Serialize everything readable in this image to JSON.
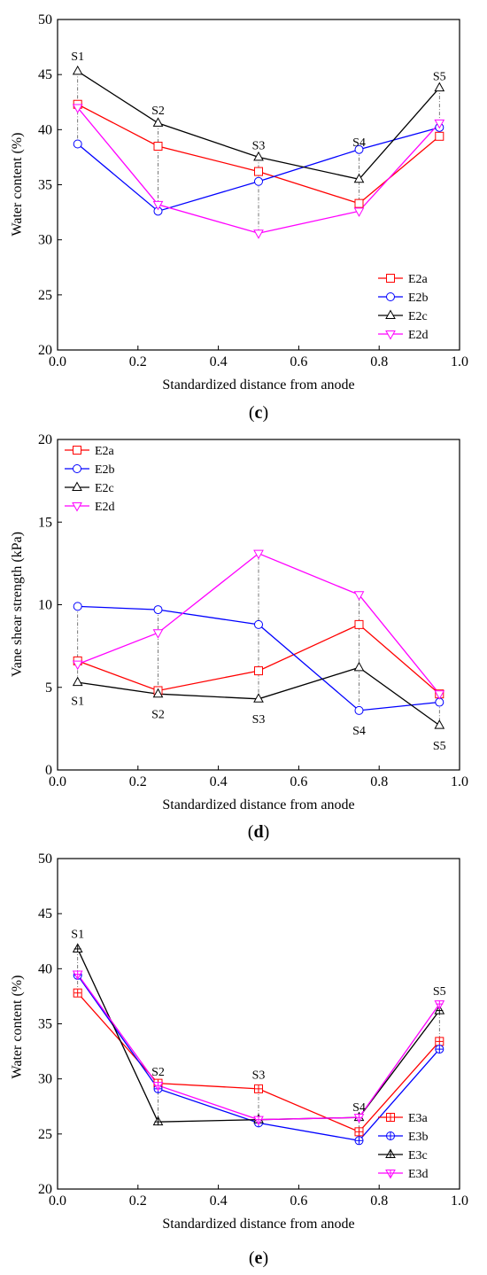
{
  "chart_data": [
    {
      "type": "line",
      "caption_open": "(",
      "caption_letter": "c",
      "caption_close": ")",
      "xlabel": "Standardized distance from anode",
      "ylabel": "Water content (%)",
      "xlim": [
        0.0,
        1.0
      ],
      "ylim": [
        20,
        50
      ],
      "xticks": [
        "0.0",
        "0.2",
        "0.4",
        "0.6",
        "0.8",
        "1.0"
      ],
      "yticks": [
        "20",
        "25",
        "30",
        "35",
        "40",
        "45",
        "50"
      ],
      "x": [
        0.05,
        0.25,
        0.5,
        0.75,
        0.95
      ],
      "legend_position": "bottom-right",
      "series": [
        {
          "name": "E2a",
          "color": "#ff0000",
          "marker": "square",
          "values": [
            42.3,
            38.5,
            36.2,
            33.3,
            39.4
          ]
        },
        {
          "name": "E2b",
          "color": "#0000ff",
          "marker": "circle",
          "values": [
            38.7,
            32.6,
            35.3,
            38.2,
            40.2
          ]
        },
        {
          "name": "E2c",
          "color": "#000000",
          "marker": "triangle-up",
          "values": [
            45.3,
            40.6,
            37.5,
            35.5,
            43.8
          ]
        },
        {
          "name": "E2d",
          "color": "#ff00ff",
          "marker": "triangle-down",
          "values": [
            42.0,
            33.2,
            30.6,
            32.6,
            40.6
          ]
        }
      ],
      "site_labels": [
        {
          "text": "S1",
          "x": 0.05,
          "y": 46.7
        },
        {
          "text": "S2",
          "x": 0.25,
          "y": 41.8
        },
        {
          "text": "S3",
          "x": 0.5,
          "y": 38.6
        },
        {
          "text": "S4",
          "x": 0.75,
          "y": 38.9
        },
        {
          "text": "S5",
          "x": 0.95,
          "y": 44.9
        }
      ]
    },
    {
      "type": "line",
      "caption_open": "(",
      "caption_letter": "d",
      "caption_close": ")",
      "xlabel": "Standardized distance from anode",
      "ylabel": "Vane shear strength (kPa)",
      "xlim": [
        0.0,
        1.0
      ],
      "ylim": [
        0,
        20
      ],
      "xticks": [
        "0.0",
        "0.2",
        "0.4",
        "0.6",
        "0.8",
        "1.0"
      ],
      "yticks": [
        "0",
        "5",
        "10",
        "15",
        "20"
      ],
      "x": [
        0.05,
        0.25,
        0.5,
        0.75,
        0.95
      ],
      "legend_position": "top-left",
      "series": [
        {
          "name": "E2a",
          "color": "#ff0000",
          "marker": "square",
          "values": [
            6.6,
            4.8,
            6.0,
            8.8,
            4.6
          ]
        },
        {
          "name": "E2b",
          "color": "#0000ff",
          "marker": "circle",
          "values": [
            9.9,
            9.7,
            8.8,
            3.6,
            4.1
          ]
        },
        {
          "name": "E2c",
          "color": "#000000",
          "marker": "triangle-up",
          "values": [
            5.3,
            4.6,
            4.3,
            6.2,
            2.7
          ]
        },
        {
          "name": "E2d",
          "color": "#ff00ff",
          "marker": "triangle-down",
          "values": [
            6.4,
            8.3,
            13.1,
            10.6,
            4.6
          ]
        }
      ],
      "site_labels": [
        {
          "text": "S1",
          "x": 0.05,
          "y": 4.2
        },
        {
          "text": "S2",
          "x": 0.25,
          "y": 3.4
        },
        {
          "text": "S3",
          "x": 0.5,
          "y": 3.1
        },
        {
          "text": "S4",
          "x": 0.75,
          "y": 2.4
        },
        {
          "text": "S5",
          "x": 0.95,
          "y": 1.5
        }
      ]
    },
    {
      "type": "line",
      "caption_open": "(",
      "caption_letter": "e",
      "caption_close": ")",
      "xlabel": "Standardized distance from anode",
      "ylabel": "Water content (%)",
      "xlim": [
        0.0,
        1.0
      ],
      "ylim": [
        20,
        50
      ],
      "xticks": [
        "0.0",
        "0.2",
        "0.4",
        "0.6",
        "0.8",
        "1.0"
      ],
      "yticks": [
        "20",
        "25",
        "30",
        "35",
        "40",
        "45",
        "50"
      ],
      "x": [
        0.05,
        0.25,
        0.5,
        0.75,
        0.95
      ],
      "legend_position": "bottom-right",
      "series": [
        {
          "name": "E3a",
          "color": "#ff0000",
          "marker": "square-plus",
          "values": [
            37.8,
            29.6,
            29.1,
            25.2,
            33.4
          ]
        },
        {
          "name": "E3b",
          "color": "#0000ff",
          "marker": "circle-plus",
          "values": [
            39.4,
            29.1,
            26.0,
            24.4,
            32.7
          ]
        },
        {
          "name": "E3c",
          "color": "#000000",
          "marker": "triangle-up-plus",
          "values": [
            41.8,
            26.1,
            26.3,
            26.5,
            36.2
          ]
        },
        {
          "name": "E3d",
          "color": "#ff00ff",
          "marker": "triangle-down-plus",
          "values": [
            39.5,
            29.4,
            26.3,
            26.5,
            36.8
          ]
        }
      ],
      "site_labels": [
        {
          "text": "S1",
          "x": 0.05,
          "y": 43.2
        },
        {
          "text": "S2",
          "x": 0.25,
          "y": 30.7
        },
        {
          "text": "S3",
          "x": 0.5,
          "y": 30.4
        },
        {
          "text": "S4",
          "x": 0.75,
          "y": 27.5
        },
        {
          "text": "S5",
          "x": 0.95,
          "y": 38.0
        }
      ]
    }
  ]
}
